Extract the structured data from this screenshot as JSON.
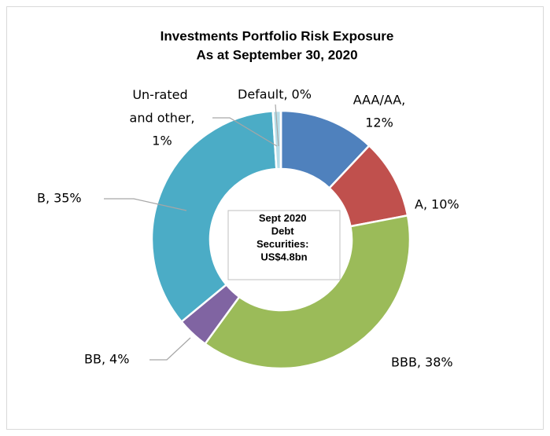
{
  "chart_data": {
    "type": "donut",
    "title": "Investments Portfolio Risk Exposure",
    "subtitle": "As at September 30, 2020",
    "center_label": "Sept 2020 Debt Securities: US$4.8bn",
    "categories": [
      "AAA/AA,",
      "A,",
      "BBB,",
      "BB,",
      "B,",
      "Un-rated and other,",
      "Default,"
    ],
    "values": [
      12,
      10,
      38,
      4,
      35,
      1,
      0
    ],
    "value_labels": [
      "12%",
      "10%",
      "38%",
      "4%",
      "35%",
      "1%",
      "0%"
    ],
    "colors": [
      "#4f81bd",
      "#c0504d",
      "#9bbb59",
      "#8064a2",
      "#4bacc6",
      "#b7dde8",
      "#1f497d"
    ]
  }
}
